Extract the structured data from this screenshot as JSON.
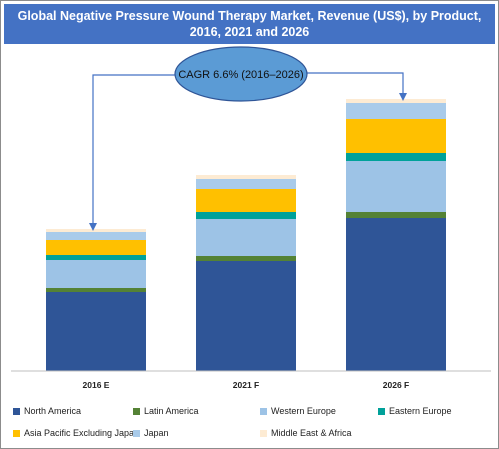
{
  "title": "Global Negative Pressure Wound Therapy Market, Revenue (US$), by Product, 2016, 2021 and 2026",
  "callout": "CAGR 6.6% (2016–2026)",
  "chart_data": {
    "type": "bar",
    "stacked": true,
    "title": "Global Negative Pressure Wound Therapy Market, Revenue (US$), by Product, 2016, 2021 and 2026",
    "categories": [
      "2016 E",
      "2021 F",
      "2026 F"
    ],
    "series": [
      {
        "name": "North America",
        "color": "#2f5597",
        "values": [
          79,
          110,
          153
        ]
      },
      {
        "name": "Latin America",
        "color": "#548235",
        "values": [
          4,
          5,
          6
        ]
      },
      {
        "name": "Western Europe",
        "color": "#9dc3e6",
        "values": [
          28,
          37,
          51
        ]
      },
      {
        "name": "Eastern Europe",
        "color": "#00a19a",
        "values": [
          5,
          7,
          8
        ]
      },
      {
        "name": "Asia Pacific Excluding Japan",
        "color": "#ffc000",
        "values": [
          15,
          23,
          34
        ]
      },
      {
        "name": "Japan",
        "color": "#a9cbea",
        "values": [
          8,
          10,
          16
        ]
      },
      {
        "name": "Middle East & Africa",
        "color": "#fdebd3",
        "values": [
          3,
          4,
          4
        ]
      }
    ],
    "ylim": [
      0,
      300
    ],
    "axes_visible": false,
    "grid": false,
    "legend_position": "bottom"
  }
}
